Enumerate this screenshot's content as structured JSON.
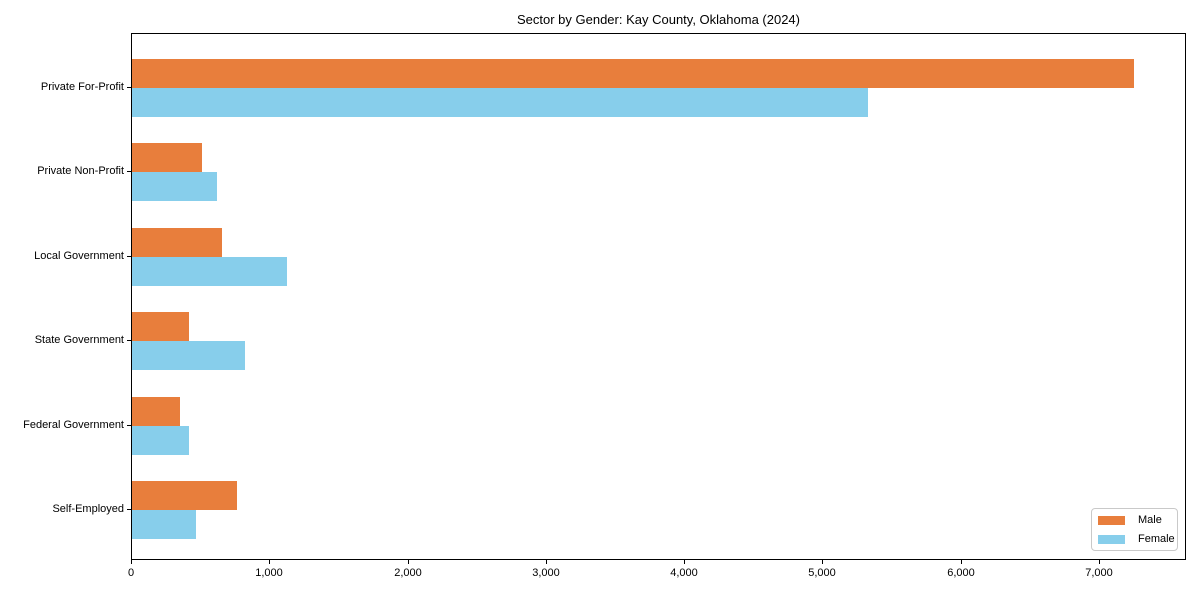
{
  "chart_data": {
    "type": "bar",
    "orientation": "horizontal",
    "title": "Sector by Gender: Kay County, Oklahoma (2024)",
    "categories": [
      "Private For-Profit",
      "Private Non-Profit",
      "Local Government",
      "State Government",
      "Federal Government",
      "Self-Employed"
    ],
    "series": [
      {
        "name": "Male",
        "color": "#e87e3c",
        "values": [
          7260,
          505,
          650,
          410,
          345,
          760
        ]
      },
      {
        "name": "Female",
        "color": "#87ceeb",
        "values": [
          5330,
          615,
          1120,
          820,
          410,
          465
        ]
      }
    ],
    "xlim": [
      0,
      7630
    ],
    "x_ticks": [
      0,
      1000,
      2000,
      3000,
      4000,
      5000,
      6000,
      7000
    ],
    "x_tick_labels": [
      "0",
      "1,000",
      "2,000",
      "3,000",
      "4,000",
      "5,000",
      "6,000",
      "7,000"
    ],
    "xlabel": "",
    "ylabel": "",
    "grid": false,
    "legend": {
      "position": "lower-right",
      "entries": [
        "Male",
        "Female"
      ]
    }
  }
}
